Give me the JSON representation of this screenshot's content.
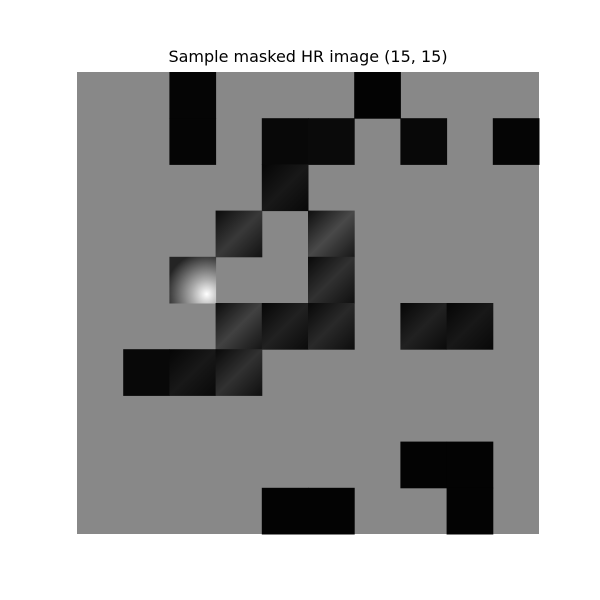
{
  "chart_data": {
    "type": "heatmap",
    "title": "Sample masked HR image (15, 15)",
    "xlabel": "",
    "ylabel": "",
    "axes_visible": false,
    "grid": false,
    "colormap": "gray",
    "mask_colour": "#888888",
    "block_grid": {
      "rows": 10,
      "cols": 10
    },
    "vmin": 0,
    "vmax": 1,
    "revealed_blocks": [
      {
        "row": 0,
        "col": 2,
        "level": 0.02
      },
      {
        "row": 0,
        "col": 6,
        "level": 0.01
      },
      {
        "row": 1,
        "col": 2,
        "level": 0.02
      },
      {
        "row": 1,
        "col": 4,
        "level": 0.03
      },
      {
        "row": 1,
        "col": 5,
        "level": 0.04
      },
      {
        "row": 1,
        "col": 7,
        "level": 0.03
      },
      {
        "row": 1,
        "col": 9,
        "level": 0.02
      },
      {
        "row": 2,
        "col": 4,
        "level": 0.06
      },
      {
        "row": 3,
        "col": 3,
        "level": 0.14
      },
      {
        "row": 3,
        "col": 5,
        "level": 0.18
      },
      {
        "row": 4,
        "col": 2,
        "level": 0.35,
        "highlight": 1.0
      },
      {
        "row": 4,
        "col": 5,
        "level": 0.12
      },
      {
        "row": 5,
        "col": 3,
        "level": 0.16
      },
      {
        "row": 5,
        "col": 4,
        "level": 0.08
      },
      {
        "row": 5,
        "col": 5,
        "level": 0.1
      },
      {
        "row": 5,
        "col": 7,
        "level": 0.08
      },
      {
        "row": 5,
        "col": 8,
        "level": 0.06
      },
      {
        "row": 6,
        "col": 1,
        "level": 0.03
      },
      {
        "row": 6,
        "col": 2,
        "level": 0.06
      },
      {
        "row": 6,
        "col": 3,
        "level": 0.12
      },
      {
        "row": 8,
        "col": 7,
        "level": 0.01
      },
      {
        "row": 8,
        "col": 8,
        "level": 0.01
      },
      {
        "row": 9,
        "col": 4,
        "level": 0.01
      },
      {
        "row": 9,
        "col": 5,
        "level": 0.01
      },
      {
        "row": 9,
        "col": 8,
        "level": 0.01
      }
    ]
  }
}
